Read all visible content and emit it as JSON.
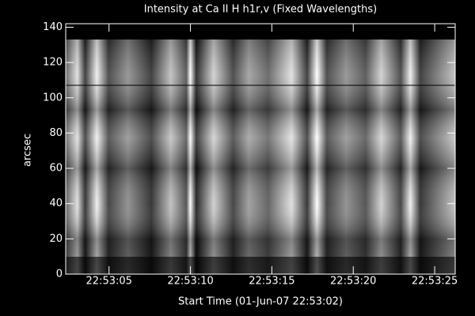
{
  "chart_data": {
    "type": "image",
    "title": "Intensity at Ca II H h1r,v (Fixed Wavelengths)",
    "xlabel": "Start Time (01-Jun-07 22:53:02)",
    "ylabel": "arcsec",
    "xlim": [
      0.34,
      24.26
    ],
    "xticks": [
      {
        "value": 3,
        "label": "22:53:05"
      },
      {
        "value": 8,
        "label": "22:53:10"
      },
      {
        "value": 13,
        "label": "22:53:15"
      },
      {
        "value": 18,
        "label": "22:53:20"
      },
      {
        "value": 23,
        "label": "22:53:25"
      }
    ],
    "ylim": [
      0,
      142
    ],
    "yticks": [
      0,
      20,
      40,
      60,
      80,
      100,
      120,
      140
    ],
    "color": "#ffffff"
  }
}
